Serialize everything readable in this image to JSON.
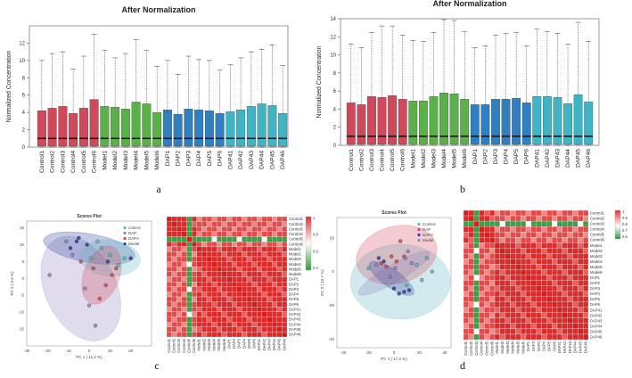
{
  "panel_labels": [
    "a",
    "b",
    "c",
    "d"
  ],
  "chart_data": [
    {
      "id": "a",
      "type": "box",
      "title": "After Normalization",
      "ylabel": "Normalized Concentration",
      "ylim": [
        0,
        14
      ],
      "yticks": [
        0,
        2,
        4,
        6,
        8,
        10,
        12
      ],
      "groups": [
        {
          "name": "Control",
          "color": "#d0495a"
        },
        {
          "name": "Model",
          "color": "#5cb04a"
        },
        {
          "name": "DAP",
          "color": "#2f7fc1"
        },
        {
          "name": "DAP4",
          "color": "#3fb4c4"
        }
      ],
      "samples": [
        {
          "name": "Control1",
          "group": "Control",
          "median": 1.0,
          "q3": 4.2,
          "max": 10.0
        },
        {
          "name": "Control2",
          "group": "Control",
          "median": 1.0,
          "q3": 4.5,
          "max": 10.8
        },
        {
          "name": "Control3",
          "group": "Control",
          "median": 1.0,
          "q3": 4.7,
          "max": 11.0
        },
        {
          "name": "Control4",
          "group": "Control",
          "median": 1.0,
          "q3": 3.9,
          "max": 9.0
        },
        {
          "name": "Control5",
          "group": "Control",
          "median": 1.0,
          "q3": 4.5,
          "max": 10.5
        },
        {
          "name": "Control6",
          "group": "Control",
          "median": 1.0,
          "q3": 5.5,
          "max": 13.0
        },
        {
          "name": "Model1",
          "group": "Model",
          "median": 1.0,
          "q3": 4.7,
          "max": 11.2
        },
        {
          "name": "Model2",
          "group": "Model",
          "median": 1.0,
          "q3": 4.6,
          "max": 10.3
        },
        {
          "name": "Model3",
          "group": "Model",
          "median": 1.0,
          "q3": 4.4,
          "max": 10.8
        },
        {
          "name": "Model4",
          "group": "Model",
          "median": 1.0,
          "q3": 5.2,
          "max": 12.4
        },
        {
          "name": "Model5",
          "group": "Model",
          "median": 1.0,
          "q3": 5.0,
          "max": 11.2
        },
        {
          "name": "Model6",
          "group": "Model",
          "median": 1.0,
          "q3": 4.0,
          "max": 9.3
        },
        {
          "name": "DAP1",
          "group": "DAP",
          "median": 1.0,
          "q3": 4.3,
          "max": 10.0
        },
        {
          "name": "DAP2",
          "group": "DAP",
          "median": 1.0,
          "q3": 3.8,
          "max": 8.4
        },
        {
          "name": "DAP3",
          "group": "DAP",
          "median": 1.0,
          "q3": 4.4,
          "max": 10.5
        },
        {
          "name": "DAP4",
          "group": "DAP",
          "median": 1.0,
          "q3": 4.3,
          "max": 10.1
        },
        {
          "name": "DAP5",
          "group": "DAP",
          "median": 1.0,
          "q3": 4.2,
          "max": 10.0
        },
        {
          "name": "DAP6",
          "group": "DAP",
          "median": 1.0,
          "q3": 3.9,
          "max": 8.9
        },
        {
          "name": "DAP41",
          "group": "DAP4",
          "median": 1.0,
          "q3": 4.1,
          "max": 9.5
        },
        {
          "name": "DAP42",
          "group": "DAP4",
          "median": 1.0,
          "q3": 4.3,
          "max": 10.3
        },
        {
          "name": "DAP43",
          "group": "DAP4",
          "median": 1.0,
          "q3": 4.7,
          "max": 11.0
        },
        {
          "name": "DAP44",
          "group": "DAP4",
          "median": 1.0,
          "q3": 5.0,
          "max": 11.3
        },
        {
          "name": "DAP45",
          "group": "DAP4",
          "median": 1.0,
          "q3": 4.8,
          "max": 11.8
        },
        {
          "name": "DAP46",
          "group": "DAP4",
          "median": 1.0,
          "q3": 3.9,
          "max": 9.4
        }
      ]
    },
    {
      "id": "b",
      "type": "box",
      "title": "After Normalization",
      "ylabel": "Normalized Concentration",
      "ylim": [
        0,
        14
      ],
      "yticks": [
        0,
        2,
        4,
        6,
        8,
        10,
        12,
        14
      ],
      "groups": [
        {
          "name": "Control",
          "color": "#d0495a"
        },
        {
          "name": "Model",
          "color": "#5cb04a"
        },
        {
          "name": "DAP",
          "color": "#2f7fc1"
        },
        {
          "name": "DAP4",
          "color": "#3fb4c4"
        }
      ],
      "samples": [
        {
          "name": "Control1",
          "group": "Control",
          "median": 1.0,
          "q3": 4.7,
          "max": 11.2
        },
        {
          "name": "Control2",
          "group": "Control",
          "median": 1.0,
          "q3": 4.5,
          "max": 10.8
        },
        {
          "name": "Control3",
          "group": "Control",
          "median": 1.0,
          "q3": 5.4,
          "max": 12.5
        },
        {
          "name": "Control4",
          "group": "Control",
          "median": 1.0,
          "q3": 5.3,
          "max": 13.2
        },
        {
          "name": "Control5",
          "group": "Control",
          "median": 1.0,
          "q3": 5.5,
          "max": 13.2
        },
        {
          "name": "Control6",
          "group": "Control",
          "median": 1.0,
          "q3": 5.1,
          "max": 12.2
        },
        {
          "name": "Model1",
          "group": "Model",
          "median": 1.0,
          "q3": 4.9,
          "max": 11.6
        },
        {
          "name": "Model2",
          "group": "Model",
          "median": 1.0,
          "q3": 4.9,
          "max": 11.5
        },
        {
          "name": "Model3",
          "group": "Model",
          "median": 1.0,
          "q3": 5.4,
          "max": 12.5
        },
        {
          "name": "Model4",
          "group": "Model",
          "median": 1.0,
          "q3": 5.8,
          "max": 13.9
        },
        {
          "name": "Model5",
          "group": "Model",
          "median": 1.0,
          "q3": 5.7,
          "max": 13.8
        },
        {
          "name": "Model6",
          "group": "Model",
          "median": 1.0,
          "q3": 5.1,
          "max": 12.6
        },
        {
          "name": "DAP1",
          "group": "DAP",
          "median": 1.0,
          "q3": 4.5,
          "max": 10.8
        },
        {
          "name": "DAP2",
          "group": "DAP",
          "median": 1.0,
          "q3": 4.5,
          "max": 11.0
        },
        {
          "name": "DAP3",
          "group": "DAP",
          "median": 1.0,
          "q3": 5.1,
          "max": 12.2
        },
        {
          "name": "DAP4",
          "group": "DAP",
          "median": 1.0,
          "q3": 5.1,
          "max": 12.4
        },
        {
          "name": "DAP5",
          "group": "DAP",
          "median": 1.0,
          "q3": 5.2,
          "max": 12.5
        },
        {
          "name": "DAP6",
          "group": "DAP",
          "median": 1.0,
          "q3": 4.7,
          "max": 11.0
        },
        {
          "name": "DAP41",
          "group": "DAP4",
          "median": 1.0,
          "q3": 5.4,
          "max": 12.9
        },
        {
          "name": "DAP42",
          "group": "DAP4",
          "median": 1.0,
          "q3": 5.4,
          "max": 12.6
        },
        {
          "name": "DAP43",
          "group": "DAP4",
          "median": 1.0,
          "q3": 5.3,
          "max": 12.4
        },
        {
          "name": "DAP44",
          "group": "DAP4",
          "median": 1.0,
          "q3": 4.6,
          "max": 11.2
        },
        {
          "name": "DAP45",
          "group": "DAP4",
          "median": 1.0,
          "q3": 5.6,
          "max": 13.6
        },
        {
          "name": "DAP46",
          "group": "DAP4",
          "median": 1.0,
          "q3": 4.8,
          "max": 11.5
        }
      ]
    },
    {
      "id": "c-scores",
      "type": "scatter",
      "title": "Scores Plot",
      "xlabel": "PC 1 ( 11.2 %)",
      "ylabel": "PC 2 ( 9.5 %)",
      "xlim": [
        -30,
        30
      ],
      "ylim": [
        -20,
        17
      ],
      "xticks": [
        -30,
        -20,
        -10,
        0,
        10,
        20
      ],
      "yticks": [
        -15,
        -10,
        -5,
        0,
        5,
        10,
        15
      ],
      "legend": [
        {
          "name": "control",
          "color": "#5cb5c0"
        },
        {
          "name": "DAP",
          "color": "#8e83c2"
        },
        {
          "name": "DAP4",
          "color": "#d0495a"
        },
        {
          "name": "Model",
          "color": "#2b3f9a"
        }
      ],
      "points": [
        {
          "group": "control",
          "x": 6,
          "y": 9
        },
        {
          "group": "control",
          "x": 10,
          "y": 7
        },
        {
          "group": "control",
          "x": 14,
          "y": 4
        },
        {
          "group": "control",
          "x": 4,
          "y": 11
        },
        {
          "group": "control",
          "x": 17,
          "y": 6
        },
        {
          "group": "control",
          "x": 1,
          "y": 6
        },
        {
          "group": "DAP",
          "x": -19,
          "y": 1
        },
        {
          "group": "DAP",
          "x": -8,
          "y": 7
        },
        {
          "group": "DAP",
          "x": -2,
          "y": -3
        },
        {
          "group": "DAP",
          "x": 0,
          "y": -8
        },
        {
          "group": "DAP",
          "x": -11,
          "y": 11
        },
        {
          "group": "DAP",
          "x": 3,
          "y": -14
        },
        {
          "group": "DAP4",
          "x": 2,
          "y": 3
        },
        {
          "group": "DAP4",
          "x": 8,
          "y": -2
        },
        {
          "group": "DAP4",
          "x": 11,
          "y": 1
        },
        {
          "group": "DAP4",
          "x": -4,
          "y": 5
        },
        {
          "group": "DAP4",
          "x": 5,
          "y": -6
        },
        {
          "group": "DAP4",
          "x": 13,
          "y": 3
        },
        {
          "group": "Model",
          "x": -9,
          "y": 9
        },
        {
          "group": "Model",
          "x": -5,
          "y": 12
        },
        {
          "group": "Model",
          "x": -1,
          "y": 10
        },
        {
          "group": "Model",
          "x": 9,
          "y": 5
        },
        {
          "group": "Model",
          "x": 20,
          "y": 6
        },
        {
          "group": "Model",
          "x": -6,
          "y": 11
        }
      ]
    },
    {
      "id": "c-heatmap",
      "type": "heatmap",
      "labels": [
        "Control1",
        "Control2",
        "Control3",
        "Control4",
        "Control5",
        "Control6",
        "Model1",
        "Model2",
        "Model3",
        "Model4",
        "Model5",
        "Model6",
        "DAP1",
        "DAP2",
        "DAP3",
        "DAP4",
        "DAP5",
        "DAP6",
        "DAP41",
        "DAP42",
        "DAP43",
        "DAP44",
        "DAP45",
        "DAP46"
      ],
      "colorbar_ticks": [
        "1",
        "0.8",
        "0.6",
        "0.4"
      ],
      "low_rows": [
        4
      ],
      "low_cols": [
        4
      ]
    },
    {
      "id": "d-scores",
      "type": "scatter",
      "title": "Scores Plot",
      "xlabel": "PC 1 ( 17.2 %)",
      "ylabel": "PC 2 ( 13.7 %)",
      "xlim": [
        -45,
        45
      ],
      "ylim": [
        -45,
        32
      ],
      "xticks": [
        -40,
        -20,
        0,
        20,
        40
      ],
      "yticks": [
        -40,
        -20,
        0,
        20
      ],
      "legend": [
        {
          "name": "Control",
          "color": "#5cb5c0"
        },
        {
          "name": "DAP",
          "color": "#d0495a"
        },
        {
          "name": "DAP4",
          "color": "#2b3f9a"
        },
        {
          "name": "Model",
          "color": "#8e83c2"
        }
      ],
      "points": [
        {
          "group": "Control",
          "x": -20,
          "y": 2
        },
        {
          "group": "Control",
          "x": 18,
          "y": 4
        },
        {
          "group": "Control",
          "x": 26,
          "y": 8
        },
        {
          "group": "Control",
          "x": 30,
          "y": 0
        },
        {
          "group": "Control",
          "x": 10,
          "y": -8
        },
        {
          "group": "Control",
          "x": 22,
          "y": -5
        },
        {
          "group": "DAP",
          "x": -10,
          "y": 5
        },
        {
          "group": "DAP",
          "x": -6,
          "y": 3
        },
        {
          "group": "DAP",
          "x": -2,
          "y": 9
        },
        {
          "group": "DAP",
          "x": 5,
          "y": 18
        },
        {
          "group": "DAP",
          "x": 8,
          "y": 9
        },
        {
          "group": "DAP",
          "x": 2,
          "y": 6
        },
        {
          "group": "DAP4",
          "x": 0,
          "y": -10
        },
        {
          "group": "DAP4",
          "x": 4,
          "y": -13
        },
        {
          "group": "DAP4",
          "x": 8,
          "y": -12
        },
        {
          "group": "DAP4",
          "x": -12,
          "y": 8
        },
        {
          "group": "DAP4",
          "x": -8,
          "y": 6
        },
        {
          "group": "DAP4",
          "x": 12,
          "y": -11
        },
        {
          "group": "Model",
          "x": 9,
          "y": 8
        },
        {
          "group": "Model",
          "x": 14,
          "y": 5
        },
        {
          "group": "Model",
          "x": 11,
          "y": 12
        },
        {
          "group": "Model",
          "x": -3,
          "y": -3
        },
        {
          "group": "Model",
          "x": -14,
          "y": 4
        },
        {
          "group": "Model",
          "x": 1,
          "y": 2
        }
      ]
    },
    {
      "id": "d-heatmap",
      "type": "heatmap",
      "labels": [
        "Control1",
        "Control2",
        "Control3",
        "Control4",
        "Control5",
        "Control6",
        "Model1",
        "Model2",
        "Model3",
        "Model4",
        "Model5",
        "Model6",
        "DAP1",
        "DAP2",
        "DAP3",
        "DAP4",
        "DAP5",
        "DAP6",
        "DAP41",
        "DAP42",
        "DAP43",
        "DAP44",
        "DAP45",
        "DAP46"
      ],
      "colorbar_ticks": [
        "1",
        "0.9",
        "0.8",
        "0.7",
        "0.6"
      ],
      "low_rows": [
        2
      ],
      "low_cols": [
        2
      ]
    }
  ]
}
